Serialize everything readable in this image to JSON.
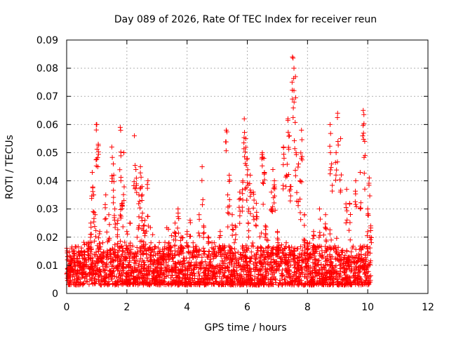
{
  "chart_data": {
    "type": "scatter",
    "title": "Day 089 of 2026, Rate Of TEC Index for receiver reun",
    "xlabel": "GPS time / hours",
    "ylabel": "ROTI / TECUs",
    "xlim": [
      0,
      12
    ],
    "ylim": [
      0,
      0.09
    ],
    "x_ticks": [
      0,
      2,
      4,
      6,
      8,
      10,
      12
    ],
    "x_tick_labels": [
      "0",
      "2",
      "4",
      "6",
      "8",
      "10",
      "12"
    ],
    "y_ticks": [
      0,
      0.01,
      0.02,
      0.03,
      0.04,
      0.05,
      0.06,
      0.07,
      0.08,
      0.09
    ],
    "y_tick_labels": [
      "0",
      "0.01",
      "0.02",
      "0.03",
      "0.04",
      "0.05",
      "0.06",
      "0.07",
      "0.08",
      "0.09"
    ],
    "grid": true,
    "marker": "+",
    "series": [
      {
        "name": "ROTI",
        "color": "#ff0000",
        "x": [
          0.05,
          0.15,
          0.25,
          0.35,
          0.45,
          0.55,
          0.65,
          0.72,
          0.8,
          0.85,
          0.9,
          0.95,
          1.0,
          1.05,
          1.1,
          1.2,
          1.3,
          1.4,
          1.5,
          1.55,
          1.6,
          1.7,
          1.78,
          1.8,
          1.85,
          1.9,
          2.0,
          2.1,
          2.25,
          2.3,
          2.4,
          2.45,
          2.5,
          2.55,
          2.6,
          2.7,
          2.8,
          3.0,
          3.2,
          3.4,
          3.6,
          3.7,
          3.8,
          4.0,
          4.1,
          4.2,
          4.4,
          4.5,
          4.55,
          4.7,
          4.9,
          5.1,
          5.3,
          5.35,
          5.4,
          5.5,
          5.6,
          5.75,
          5.85,
          5.9,
          5.95,
          6.0,
          6.05,
          6.1,
          6.2,
          6.3,
          6.5,
          6.55,
          6.6,
          6.8,
          6.85,
          6.9,
          7.0,
          7.2,
          7.3,
          7.35,
          7.4,
          7.45,
          7.5,
          7.55,
          7.6,
          7.62,
          7.7,
          7.75,
          7.8,
          7.9,
          8.0,
          8.2,
          8.4,
          8.6,
          8.75,
          8.8,
          8.95,
          9.0,
          9.1,
          9.3,
          9.4,
          9.6,
          9.75,
          9.85,
          9.9,
          10.0,
          10.05,
          10.1
        ],
        "y": [
          0.009,
          0.012,
          0.014,
          0.008,
          0.011,
          0.01,
          0.012,
          0.018,
          0.025,
          0.043,
          0.035,
          0.028,
          0.06,
          0.053,
          0.022,
          0.018,
          0.035,
          0.028,
          0.052,
          0.046,
          0.03,
          0.026,
          0.059,
          0.04,
          0.032,
          0.05,
          0.022,
          0.025,
          0.056,
          0.044,
          0.035,
          0.045,
          0.038,
          0.024,
          0.026,
          0.04,
          0.018,
          0.012,
          0.015,
          0.018,
          0.025,
          0.03,
          0.02,
          0.022,
          0.026,
          0.018,
          0.028,
          0.045,
          0.024,
          0.02,
          0.018,
          0.022,
          0.058,
          0.035,
          0.042,
          0.028,
          0.024,
          0.036,
          0.04,
          0.062,
          0.055,
          0.048,
          0.03,
          0.042,
          0.036,
          0.032,
          0.05,
          0.048,
          0.024,
          0.036,
          0.044,
          0.04,
          0.022,
          0.052,
          0.042,
          0.062,
          0.056,
          0.038,
          0.084,
          0.08,
          0.077,
          0.05,
          0.046,
          0.04,
          0.058,
          0.028,
          0.018,
          0.022,
          0.03,
          0.028,
          0.06,
          0.046,
          0.05,
          0.064,
          0.055,
          0.037,
          0.032,
          0.04,
          0.043,
          0.065,
          0.054,
          0.03,
          0.041,
          0.024
        ],
        "dense_band_note": "dense cloud of points between 0.002 and 0.02 spanning 0 to 10.1 hours"
      }
    ]
  }
}
